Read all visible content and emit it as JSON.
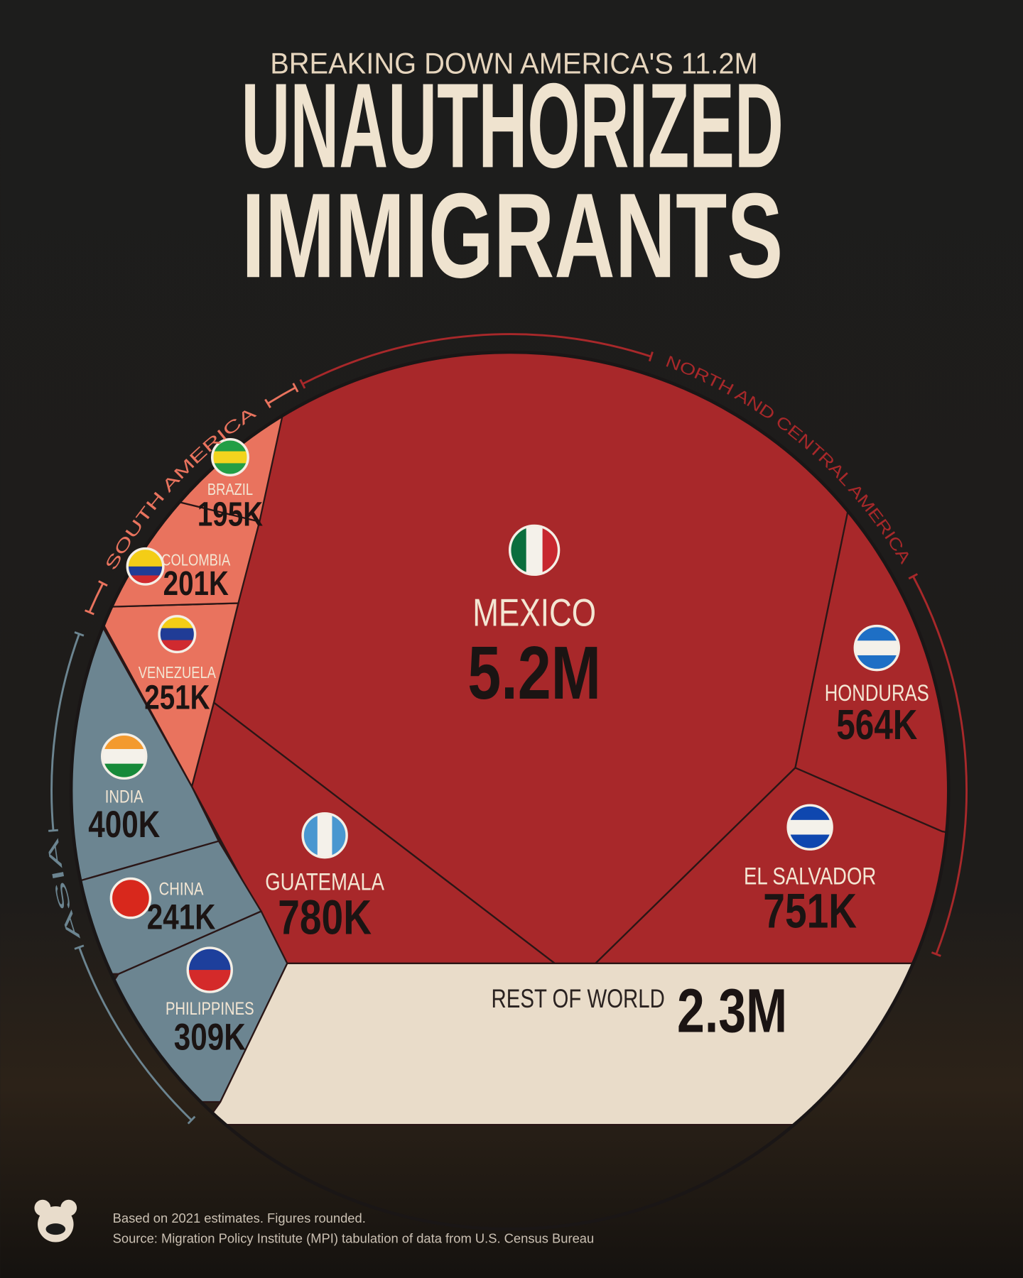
{
  "chart_data": {
    "type": "voronoi",
    "subtitle": "BREAKING DOWN AMERICA'S 11.2M",
    "title": [
      "UNAUTHORIZED",
      "IMMIGRANTS"
    ],
    "series": [
      {
        "name": "NORTH AND CENTRAL AMERICA",
        "color": "#a8282a",
        "categories": [
          "MEXICO",
          "GUATEMALA",
          "EL SALVADOR",
          "HONDURAS"
        ],
        "values": [
          5200000,
          780000,
          751000,
          564000
        ],
        "value_labels": [
          "5.2M",
          "780K",
          "751K",
          "564K"
        ]
      },
      {
        "name": "SOUTH AMERICA",
        "color": "#e9735e",
        "categories": [
          "VENEZUELA",
          "COLOMBIA",
          "BRAZIL"
        ],
        "values": [
          251000,
          201000,
          195000
        ],
        "value_labels": [
          "251K",
          "201K",
          "195K"
        ]
      },
      {
        "name": "ASIA",
        "color": "#6c8591",
        "categories": [
          "INDIA",
          "PHILIPPINES",
          "CHINA"
        ],
        "values": [
          400000,
          309000,
          241000
        ],
        "value_labels": [
          "400K",
          "309K",
          "241K"
        ]
      }
    ],
    "rest": {
      "label": "REST OF WORLD",
      "value": 2300000,
      "value_label": "2.3M",
      "color": "#e9dcc9"
    },
    "notes": [
      "Based on 2021 estimates. Figures rounded.",
      "Source: Migration Policy Institute (MPI) tabulation of data from U.S. Census Bureau"
    ]
  }
}
